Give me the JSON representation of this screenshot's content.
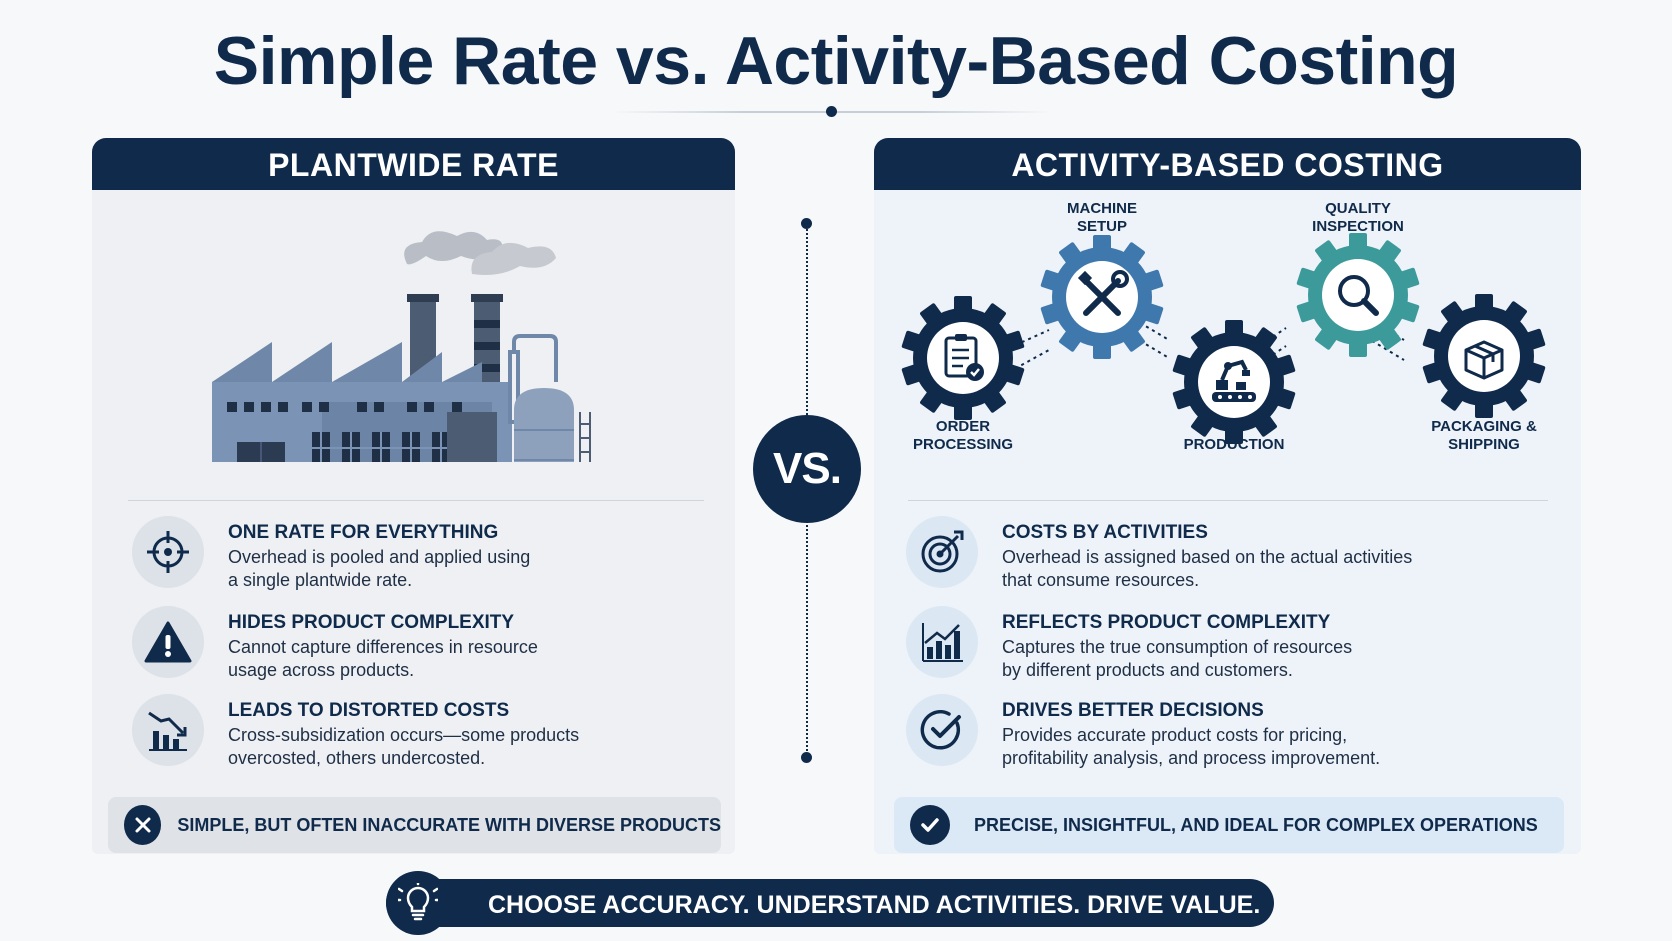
{
  "title": "Simple Rate vs. Activity-Based Costing",
  "vs_label": "VS.",
  "left": {
    "header": "PLANTWIDE RATE",
    "items": [
      {
        "title": "ONE RATE FOR EVERYTHING",
        "line1": "Overhead is pooled and applied using",
        "line2": "a single plantwide rate.",
        "icon": "crosshair-icon"
      },
      {
        "title": "HIDES PRODUCT COMPLEXITY",
        "line1": "Cannot capture differences in resource",
        "line2": "usage across products.",
        "icon": "warning-icon"
      },
      {
        "title": "LEADS TO DISTORTED COSTS",
        "line1": "Cross-subsidization occurs—some products",
        "line2": "overcosted, others undercosted.",
        "icon": "declining-chart-icon"
      }
    ],
    "verdict": "SIMPLE, BUT OFTEN INACCURATE WITH DIVERSE PRODUCTS",
    "verdict_icon": "close-icon"
  },
  "right": {
    "header": "ACTIVITY-BASED COSTING",
    "activities": [
      {
        "line1": "ORDER",
        "line2": "PROCESSING",
        "icon": "clipboard-icon",
        "color": "#0f2a4a"
      },
      {
        "line1": "MACHINE",
        "line2": "SETUP",
        "icon": "tools-icon",
        "color": "#3f78ad"
      },
      {
        "line1": "PRODUCTION",
        "line2": "",
        "icon": "robot-arm-icon",
        "color": "#0f2a4a"
      },
      {
        "line1": "QUALITY",
        "line2": "INSPECTION",
        "icon": "magnifier-icon",
        "color": "#3d9a9b"
      },
      {
        "line1": "PACKAGING &",
        "line2": "SHIPPING",
        "icon": "box-icon",
        "color": "#0f2a4a"
      }
    ],
    "items": [
      {
        "title": "COSTS BY ACTIVITIES",
        "line1": "Overhead is assigned based on the actual activities",
        "line2": "that consume resources.",
        "icon": "target-icon"
      },
      {
        "title": "REFLECTS PRODUCT COMPLEXITY",
        "line1": "Captures the true consumption of resources",
        "line2": "by different products and customers.",
        "icon": "bar-chart-icon"
      },
      {
        "title": "DRIVES BETTER DECISIONS",
        "line1": "Provides accurate product costs for pricing,",
        "line2": "profitability analysis, and process improvement.",
        "icon": "check-circle-icon"
      }
    ],
    "verdict": "PRECISE, INSIGHTFUL, AND IDEAL FOR COMPLEX OPERATIONS",
    "verdict_icon": "check-icon"
  },
  "footer": {
    "text": "CHOOSE ACCURACY. UNDERSTAND ACTIVITIES. DRIVE VALUE.",
    "icon": "lightbulb-icon"
  },
  "colors": {
    "navy": "#0f2a4a",
    "blue": "#3f78ad",
    "teal": "#3d9a9b",
    "factory": "#6f87a8"
  }
}
